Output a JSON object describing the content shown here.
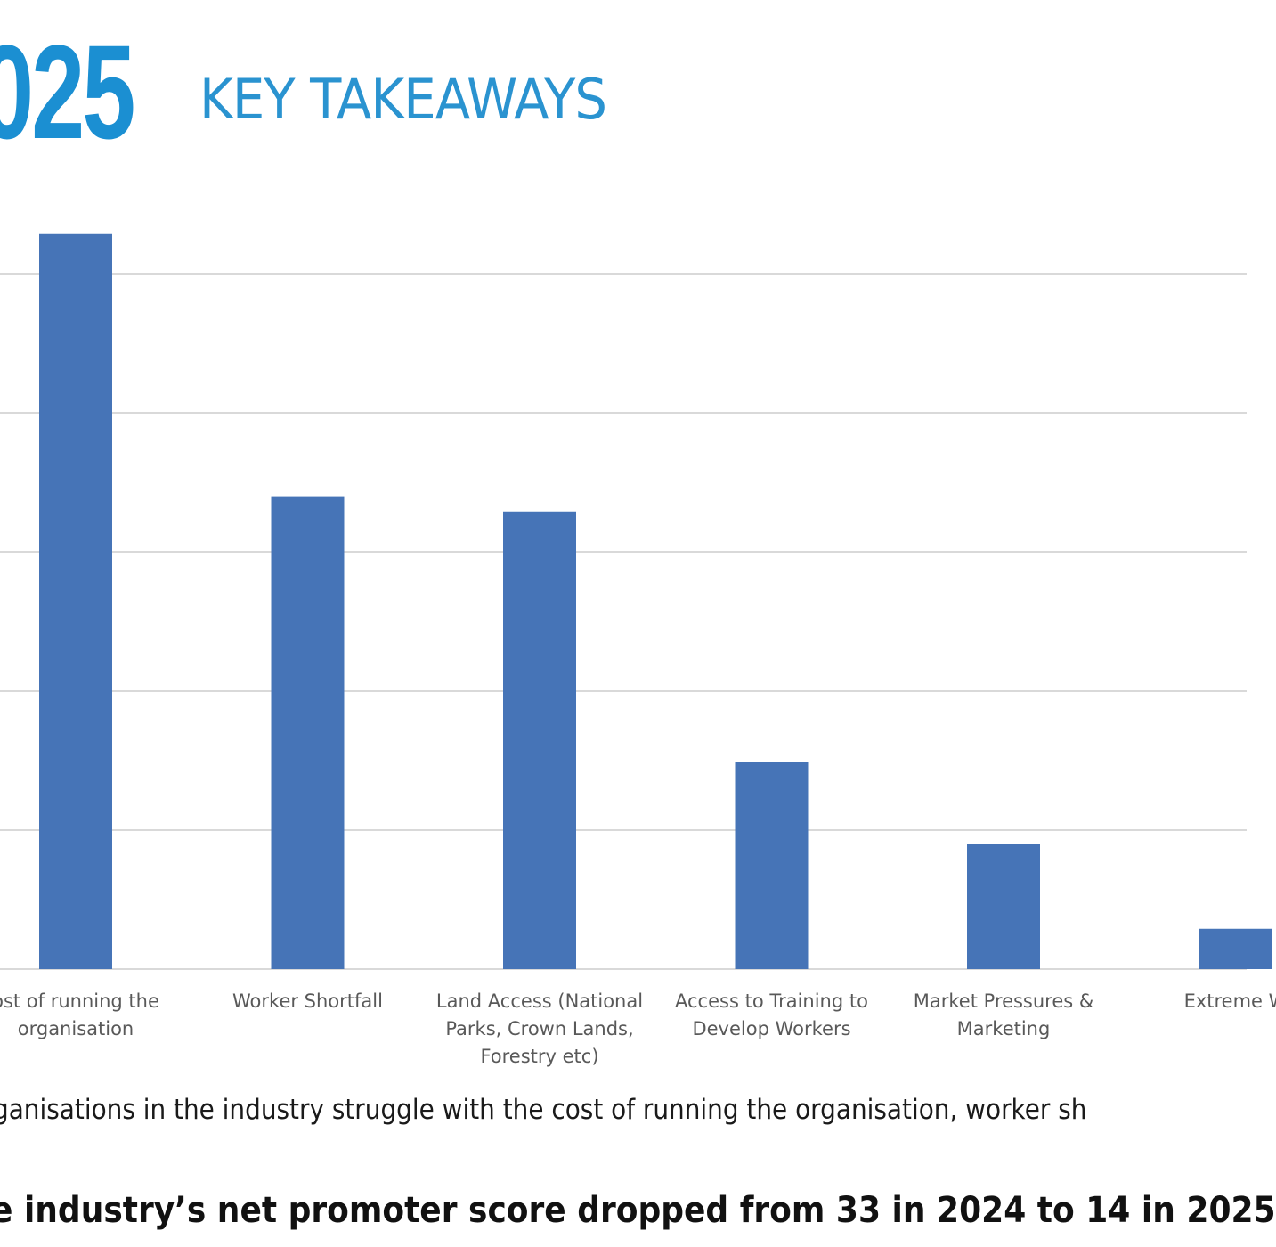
{
  "header": {
    "year": "025",
    "title": "KEY TAKEAWAYS"
  },
  "colors": {
    "brand_blue": "#1b8fd2",
    "bar_fill": "#4674b7",
    "gridline": "#d9d9d9",
    "label_text": "#595959"
  },
  "chart_data": {
    "type": "bar",
    "title": "",
    "xlabel": "",
    "ylabel": "",
    "categories": [
      [
        "ost of running the",
        "organisation"
      ],
      [
        "Worker Shortfall"
      ],
      [
        "Land Access (National",
        "Parks, Crown Lands,",
        "Forestry etc)"
      ],
      [
        "Access to Training to",
        "Develop Workers"
      ],
      [
        "Market Pressures &",
        "Marketing"
      ],
      [
        "Extreme W"
      ]
    ],
    "values": [
      5.29,
      3.4,
      3.29,
      1.49,
      0.9,
      0.29
    ],
    "value_units": "gridline intervals (no axis labels visible)",
    "ylim": [
      0,
      5.5
    ],
    "gridlines": [
      0,
      1,
      2,
      3,
      4,
      5
    ],
    "grid": true,
    "legend": "none"
  },
  "body": {
    "caption": "ganisations in the industry struggle with the cost of running the organisation, worker sh",
    "headline": "e industry’s net promoter score dropped from 33 in 2024 to 14 in 2025"
  }
}
